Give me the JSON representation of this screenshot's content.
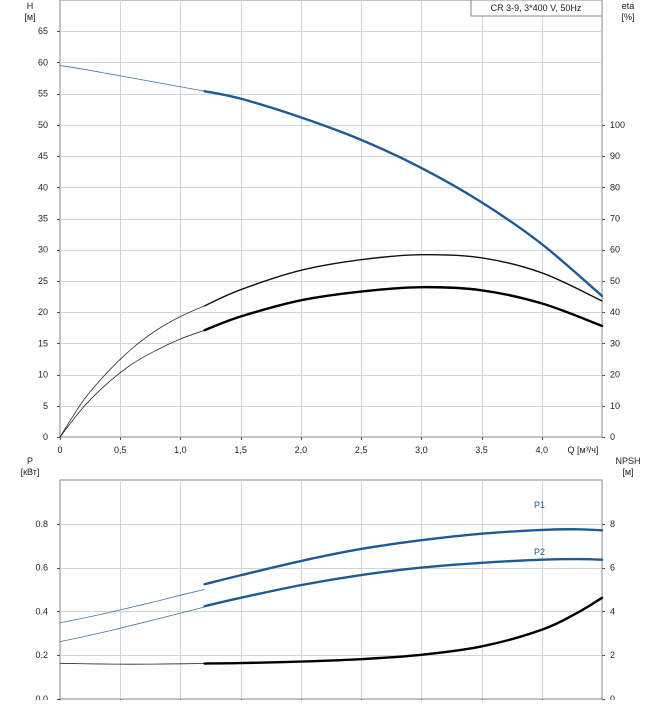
{
  "chart_data": [
    {
      "type": "line",
      "title": "",
      "legend_text": "CR 3-9, 3*400 V, 50Hz",
      "legend_placement": "top-right",
      "grid": true,
      "xlabel": "Q [м³/ч]",
      "ylabel_line1": "H",
      "ylabel_line2": "[м]",
      "y2label_line1": "eta",
      "y2label_line2": "[%]",
      "xlim": [
        0,
        4.5
      ],
      "ylim": [
        0,
        70
      ],
      "y2lim": [
        0,
        140
      ],
      "x_ticks": [
        0,
        0.5,
        1.0,
        1.5,
        2.0,
        2.5,
        3.0,
        3.5,
        4.0
      ],
      "x_tick_labels": [
        "0",
        "0,5",
        "1,0",
        "1,5",
        "2,0",
        "2,5",
        "3,0",
        "3,5",
        "4,0"
      ],
      "y_ticks": [
        0,
        5,
        10,
        15,
        20,
        25,
        30,
        35,
        40,
        45,
        50,
        55,
        60,
        65
      ],
      "y_tick_labels": [
        "0",
        "5",
        "10",
        "15",
        "20",
        "25",
        "30",
        "35",
        "40",
        "45",
        "50",
        "55",
        "60",
        "65"
      ],
      "y2_ticks": [
        0,
        10,
        20,
        30,
        40,
        50,
        60,
        70,
        80,
        90,
        100
      ],
      "y2_tick_labels": [
        "0",
        "10",
        "20",
        "30",
        "40",
        "50",
        "60",
        "70",
        "80",
        "90",
        "100"
      ],
      "series": [
        {
          "role": "head",
          "axis": "left",
          "color": "#1f5a96",
          "thin": {
            "x": [
              0,
              0.2,
              0.4,
              0.6,
              0.8,
              1.0,
              1.2
            ],
            "y": [
              59.5,
              58.9,
              58.2,
              57.5,
              56.8,
              56.1,
              55.4
            ]
          },
          "thick": {
            "x": [
              1.2,
              1.5,
              2.0,
              2.5,
              3.0,
              3.5,
              4.0,
              4.5
            ],
            "y": [
              55.4,
              54.2,
              51.2,
              47.6,
              43.1,
              37.6,
              30.9,
              22.6
            ]
          }
        },
        {
          "role": "efficiency_upper",
          "axis": "right",
          "color": "#111111",
          "thin": {
            "x": [
              0,
              0.2,
              0.4,
              0.6,
              0.8,
              1.0,
              1.2
            ],
            "y": [
              0,
              12,
              21,
              28.4,
              34.2,
              38.6,
              42
            ]
          },
          "thick": {
            "x": [
              1.2,
              1.5,
              2.0,
              2.5,
              3.0,
              3.5,
              4.0,
              4.5
            ],
            "y": [
              42,
              47.2,
              53.4,
              56.8,
              58.4,
              57.4,
              52.6,
              43.6
            ]
          }
        },
        {
          "role": "efficiency_lower",
          "axis": "right",
          "color": "#000000",
          "thin": {
            "x": [
              0,
              0.2,
              0.4,
              0.6,
              0.8,
              1.0,
              1.2
            ],
            "y": [
              0,
              9.8,
              17.4,
              23.4,
              27.8,
              31.4,
              34.2
            ]
          },
          "thick": {
            "x": [
              1.2,
              1.5,
              2.0,
              2.5,
              3.0,
              3.5,
              4.0,
              4.5
            ],
            "y": [
              34.2,
              38.6,
              43.8,
              46.6,
              48.0,
              47.0,
              42.8,
              35.6
            ]
          }
        }
      ]
    },
    {
      "type": "line",
      "title": "",
      "grid": true,
      "ylabel_line1": "P",
      "ylabel_line2": "[кВт]",
      "y2label_line1": "NPSH",
      "y2label_line2": "[м]",
      "xlim": [
        0,
        4.5
      ],
      "ylim": [
        0,
        1.0
      ],
      "y2lim": [
        0,
        10
      ],
      "x_ticks": [
        0,
        0.5,
        1.0,
        1.5,
        2.0,
        2.5,
        3.0,
        3.5,
        4.0
      ],
      "y_ticks": [
        0,
        0.2,
        0.4,
        0.6,
        0.8
      ],
      "y_tick_labels": [
        "0.0",
        "0.2",
        "0.4",
        "0.6",
        "0.8"
      ],
      "y2_ticks": [
        0,
        2,
        4,
        6,
        8
      ],
      "y2_tick_labels": [
        "0",
        "2",
        "4",
        "6",
        "8"
      ],
      "series": [
        {
          "name": "P1",
          "axis": "left",
          "color": "#1f5a96",
          "thin": {
            "x": [
              0,
              0.2,
              0.4,
              0.6,
              0.8,
              1.0,
              1.2
            ],
            "y": [
              0.348,
              0.37,
              0.394,
              0.42,
              0.446,
              0.474,
              0.5
            ]
          },
          "thick": {
            "x": [
              1.2,
              1.5,
              2.0,
              2.5,
              3.0,
              3.5,
              4.0,
              4.3,
              4.5
            ],
            "y": [
              0.524,
              0.565,
              0.63,
              0.685,
              0.725,
              0.755,
              0.772,
              0.775,
              0.77
            ]
          }
        },
        {
          "name": "P2",
          "axis": "left",
          "color": "#1f5a96",
          "thin": {
            "x": [
              0,
              0.2,
              0.4,
              0.6,
              0.8,
              1.0,
              1.2
            ],
            "y": [
              0.262,
              0.285,
              0.31,
              0.337,
              0.364,
              0.392,
              0.42
            ]
          },
          "thick": {
            "x": [
              1.2,
              1.5,
              2.0,
              2.5,
              3.0,
              3.5,
              4.0,
              4.3,
              4.5
            ],
            "y": [
              0.424,
              0.462,
              0.52,
              0.566,
              0.6,
              0.622,
              0.636,
              0.639,
              0.636
            ]
          }
        },
        {
          "role": "npsh",
          "axis": "right",
          "color": "#000000",
          "thin": {
            "x": [
              0,
              0.3,
              0.6,
              0.9,
              1.2
            ],
            "y": [
              1.63,
              1.6,
              1.59,
              1.6,
              1.62
            ]
          },
          "thick": {
            "x": [
              1.2,
              1.5,
              2.0,
              2.5,
              3.0,
              3.5,
              4.0,
              4.3,
              4.5
            ],
            "y": [
              1.62,
              1.64,
              1.71,
              1.82,
              2.02,
              2.4,
              3.16,
              3.95,
              4.62
            ]
          }
        }
      ]
    }
  ]
}
